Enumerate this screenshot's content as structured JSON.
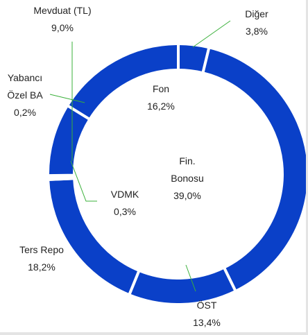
{
  "chart_data": {
    "type": "donut",
    "categories": [
      "Diğer",
      "Fin. Bonosu",
      "ÖST",
      "Ters Repo",
      "VDMK",
      "Yabancı Özel BA",
      "Mevduat (TL)",
      "Fon"
    ],
    "values": [
      3.8,
      39.0,
      13.4,
      18.2,
      0.3,
      0.2,
      9.0,
      16.2
    ],
    "value_labels": [
      "3,8%",
      "39,0%",
      "13,4%",
      "18,2%",
      "0,3%",
      "0,2%",
      "9,0%",
      "16,2%"
    ],
    "color": "#0a40c8"
  }
}
